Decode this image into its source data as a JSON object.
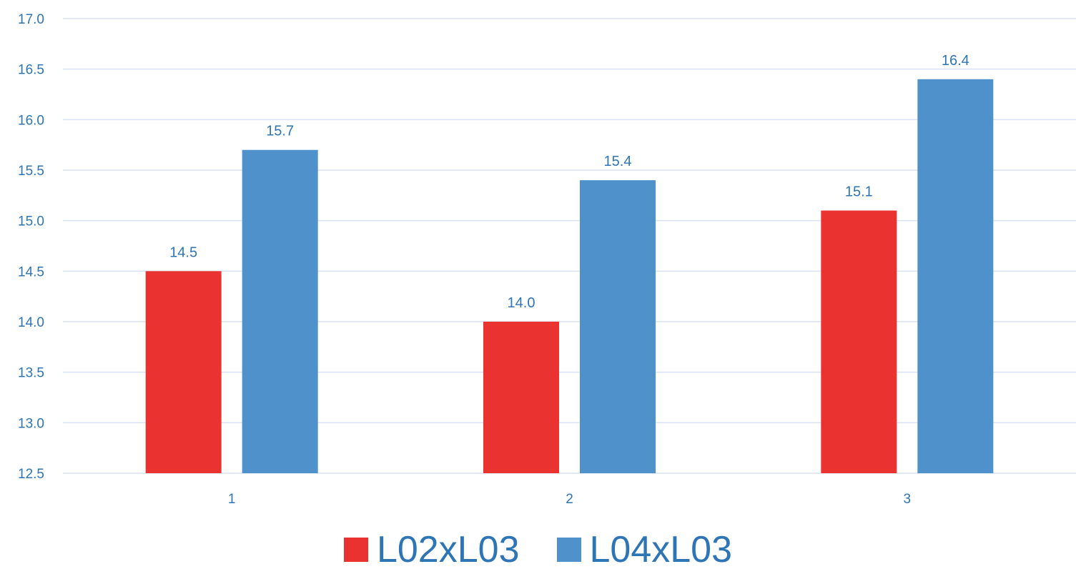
{
  "chart_data": {
    "type": "bar",
    "categories": [
      "1",
      "2",
      "3"
    ],
    "series": [
      {
        "name": "L02xL03",
        "values": [
          14.5,
          14.0,
          15.1
        ],
        "color": "#EA3330"
      },
      {
        "name": "L04xL03",
        "values": [
          15.7,
          15.4,
          16.4
        ],
        "color": "#4E91CB"
      }
    ],
    "ylim": [
      12.5,
      17.0
    ],
    "yticks": [
      "12.5",
      "13.0",
      "13.5",
      "14.0",
      "14.5",
      "15.0",
      "15.5",
      "16.0",
      "16.5",
      "17.0"
    ],
    "title": "",
    "xlabel": "",
    "ylabel": "",
    "grid": true,
    "legend_position": "bottom",
    "data_labels": true
  },
  "colors": {
    "text": "#2E75B6",
    "grid": "#D9E2F0"
  }
}
